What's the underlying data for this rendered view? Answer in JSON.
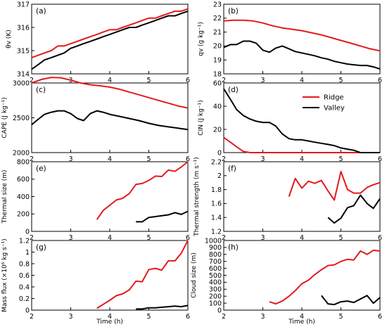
{
  "colors": {
    "ridge": "#e41a1c",
    "valley": "#000000"
  },
  "legend": {
    "placement": "top-right of panel (d)",
    "ridge": "Ridge",
    "valley": "Valley"
  },
  "x_axis": {
    "label": "Time (h)",
    "range": [
      2,
      6
    ],
    "ticks": [
      "2",
      "3",
      "4",
      "5",
      "6"
    ]
  },
  "chart_data": [
    {
      "type": "line",
      "tag": "(a)",
      "ylabel": "θv (K)",
      "ylim": [
        314,
        317
      ],
      "yticks": [
        314,
        315,
        316,
        317
      ],
      "series": [
        {
          "name": "Ridge",
          "x": [
            2,
            2.17,
            2.33,
            2.5,
            2.67,
            2.83,
            3,
            3.17,
            3.33,
            3.5,
            3.67,
            3.83,
            4,
            4.17,
            4.33,
            4.5,
            4.67,
            4.83,
            5,
            5.17,
            5.33,
            5.5,
            5.67,
            5.83,
            6
          ],
          "y": [
            314.7,
            314.8,
            314.9,
            315.0,
            315.2,
            315.2,
            315.3,
            315.4,
            315.5,
            315.6,
            315.7,
            315.8,
            315.9,
            315.9,
            316.0,
            316.1,
            316.2,
            316.3,
            316.4,
            316.4,
            316.5,
            316.6,
            316.7,
            316.7,
            316.8
          ]
        },
        {
          "name": "Valley",
          "x": [
            2,
            2.17,
            2.33,
            2.5,
            2.67,
            2.83,
            3,
            3.17,
            3.33,
            3.5,
            3.67,
            3.83,
            4,
            4.17,
            4.33,
            4.5,
            4.67,
            4.83,
            5,
            5.17,
            5.33,
            5.5,
            5.67,
            5.83,
            6
          ],
          "y": [
            314.2,
            314.4,
            314.6,
            314.7,
            314.8,
            314.9,
            315.1,
            315.2,
            315.3,
            315.4,
            315.5,
            315.6,
            315.7,
            315.8,
            315.9,
            316.0,
            316.0,
            316.1,
            316.2,
            316.3,
            316.4,
            316.5,
            316.5,
            316.6,
            316.7
          ]
        }
      ]
    },
    {
      "type": "line",
      "tag": "(b)",
      "ylabel": "qv (g kg⁻¹)",
      "ylim": [
        18,
        23
      ],
      "yticks": [
        18,
        19,
        20,
        21,
        22,
        23
      ],
      "series": [
        {
          "name": "Ridge",
          "x": [
            2,
            2.25,
            2.5,
            2.75,
            3,
            3.25,
            3.5,
            3.75,
            4,
            4.25,
            4.5,
            4.75,
            5,
            5.25,
            5.5,
            5.75,
            6
          ],
          "y": [
            21.8,
            21.85,
            21.85,
            21.8,
            21.65,
            21.45,
            21.3,
            21.2,
            21.1,
            20.95,
            20.8,
            20.6,
            20.4,
            20.2,
            20.0,
            19.8,
            19.65
          ]
        },
        {
          "name": "Valley",
          "x": [
            2,
            2.17,
            2.33,
            2.5,
            2.67,
            2.83,
            3,
            3.17,
            3.33,
            3.5,
            3.67,
            3.83,
            4,
            4.17,
            4.33,
            4.5,
            4.67,
            4.83,
            5,
            5.17,
            5.33,
            5.5,
            5.67,
            5.83,
            6
          ],
          "y": [
            19.9,
            20.1,
            20.1,
            20.35,
            20.35,
            20.2,
            19.7,
            19.55,
            19.85,
            20.0,
            19.8,
            19.6,
            19.5,
            19.4,
            19.3,
            19.15,
            19.05,
            18.9,
            18.8,
            18.7,
            18.65,
            18.6,
            18.6,
            18.5,
            18.35
          ]
        }
      ]
    },
    {
      "type": "line",
      "tag": "(c)",
      "ylabel": "CAPE (J kg⁻¹)",
      "ylim": [
        2000,
        3000
      ],
      "yticks": [
        2000,
        2500,
        3000
      ],
      "series": [
        {
          "name": "Ridge",
          "x": [
            2,
            2.25,
            2.5,
            2.75,
            3,
            3.25,
            3.5,
            3.75,
            4,
            4.25,
            4.5,
            4.75,
            5,
            5.25,
            5.5,
            5.75,
            6
          ],
          "y": [
            3000,
            3050,
            3080,
            3075,
            3040,
            3000,
            2975,
            2960,
            2940,
            2910,
            2870,
            2830,
            2790,
            2750,
            2710,
            2670,
            2640
          ]
        },
        {
          "name": "Valley",
          "x": [
            2,
            2.17,
            2.33,
            2.5,
            2.67,
            2.83,
            3,
            3.17,
            3.33,
            3.5,
            3.67,
            3.83,
            4,
            4.25,
            4.5,
            4.75,
            5,
            5.25,
            5.5,
            5.75,
            6
          ],
          "y": [
            2400,
            2480,
            2550,
            2580,
            2600,
            2600,
            2560,
            2490,
            2460,
            2560,
            2600,
            2580,
            2550,
            2520,
            2490,
            2460,
            2420,
            2390,
            2370,
            2350,
            2330
          ]
        }
      ]
    },
    {
      "type": "line",
      "tag": "(d)",
      "ylabel": "CIN (J kg⁻¹)",
      "ylim": [
        0,
        60
      ],
      "yticks": [
        0,
        20,
        40,
        60
      ],
      "series": [
        {
          "name": "Ridge",
          "x": [
            2,
            2.17,
            2.33,
            2.5,
            2.67,
            2.83,
            3,
            3.5,
            4,
            4.5,
            5,
            5.5,
            6
          ],
          "y": [
            13,
            9,
            5,
            1,
            0,
            0,
            0,
            0,
            0,
            0,
            0,
            0,
            0
          ]
        },
        {
          "name": "Valley",
          "x": [
            2,
            2.17,
            2.33,
            2.5,
            2.67,
            2.83,
            3,
            3.17,
            3.33,
            3.5,
            3.67,
            3.83,
            4,
            4.17,
            4.33,
            4.5,
            4.67,
            4.83,
            5,
            5.17,
            5.33,
            5.5,
            5.67,
            5.83,
            6
          ],
          "y": [
            55,
            46,
            37,
            32,
            29,
            27,
            26,
            26,
            23,
            16,
            12,
            11,
            11,
            10,
            9,
            8,
            7,
            6,
            4,
            3,
            2,
            0,
            0,
            0,
            0
          ]
        }
      ]
    },
    {
      "type": "line",
      "tag": "(e)",
      "ylabel": "Thermal size (m)",
      "ylim": [
        0,
        800
      ],
      "yticks": [
        0,
        200,
        400,
        600,
        800
      ],
      "series": [
        {
          "name": "Ridge",
          "x": [
            3.67,
            3.83,
            4,
            4.17,
            4.33,
            4.5,
            4.67,
            4.83,
            5,
            5.17,
            5.33,
            5.5,
            5.67,
            5.83,
            6
          ],
          "y": [
            135,
            240,
            300,
            360,
            380,
            435,
            540,
            550,
            585,
            635,
            630,
            705,
            690,
            740,
            800
          ]
        },
        {
          "name": "Valley",
          "x": [
            4.67,
            4.83,
            5,
            5.17,
            5.33,
            5.5,
            5.67,
            5.83,
            6
          ],
          "y": [
            110,
            110,
            160,
            170,
            180,
            190,
            215,
            195,
            230
          ]
        }
      ]
    },
    {
      "type": "line",
      "tag": "(f)",
      "ylabel": "Thermal strength (m s⁻¹)",
      "ylim": [
        1.2,
        2.2
      ],
      "yticks": [
        1.2,
        1.4,
        1.6,
        1.8,
        2.0,
        2.2
      ],
      "series": [
        {
          "name": "Ridge",
          "x": [
            3.67,
            3.83,
            4,
            4.17,
            4.33,
            4.5,
            4.67,
            4.83,
            5,
            5.17,
            5.33,
            5.5,
            5.67,
            5.83,
            6
          ],
          "y": [
            1.7,
            1.96,
            1.82,
            1.92,
            1.89,
            1.93,
            1.78,
            1.65,
            2.06,
            1.8,
            1.75,
            1.75,
            1.83,
            1.87,
            1.9
          ]
        },
        {
          "name": "Valley",
          "x": [
            4.67,
            4.83,
            5,
            5.17,
            5.33,
            5.5,
            5.67,
            5.83,
            6
          ],
          "y": [
            1.4,
            1.32,
            1.39,
            1.54,
            1.57,
            1.72,
            1.6,
            1.53,
            1.67
          ]
        }
      ]
    },
    {
      "type": "line",
      "tag": "(g)",
      "ylabel": "Mass flux (×10⁶ kg s⁻¹)",
      "ylim": [
        0,
        1.2
      ],
      "yticks": [
        0,
        0.2,
        0.4,
        0.6,
        0.8,
        1.0,
        1.2
      ],
      "series": [
        {
          "name": "Ridge",
          "x": [
            3.67,
            3.83,
            4,
            4.17,
            4.33,
            4.5,
            4.67,
            4.83,
            5,
            5.17,
            5.33,
            5.5,
            5.67,
            5.83,
            6
          ],
          "y": [
            0.03,
            0.1,
            0.17,
            0.25,
            0.28,
            0.35,
            0.5,
            0.49,
            0.7,
            0.72,
            0.69,
            0.85,
            0.85,
            0.98,
            1.2
          ]
        },
        {
          "name": "Valley",
          "x": [
            4.67,
            4.83,
            5,
            5.17,
            5.33,
            5.5,
            5.67,
            5.83,
            6
          ],
          "y": [
            0.02,
            0.02,
            0.04,
            0.04,
            0.05,
            0.06,
            0.07,
            0.06,
            0.08
          ]
        }
      ]
    },
    {
      "type": "line",
      "tag": "(h)",
      "ylabel": "Cloud size (m)",
      "ylim": [
        0,
        1000
      ],
      "yticks": [
        0,
        100,
        200,
        300,
        400,
        500,
        600,
        700,
        800,
        900,
        1000
      ],
      "series": [
        {
          "name": "Ridge",
          "x": [
            3.17,
            3.33,
            3.5,
            3.67,
            3.83,
            4,
            4.17,
            4.33,
            4.5,
            4.67,
            4.83,
            5,
            5.17,
            5.33,
            5.5,
            5.67,
            5.83,
            6
          ],
          "y": [
            120,
            90,
            130,
            200,
            280,
            380,
            430,
            510,
            580,
            640,
            650,
            700,
            730,
            720,
            850,
            800,
            860,
            850
          ]
        },
        {
          "name": "Valley",
          "x": [
            4.5,
            4.67,
            4.83,
            5,
            5.17,
            5.33,
            5.5,
            5.67,
            5.83,
            6
          ],
          "y": [
            210,
            90,
            80,
            120,
            130,
            110,
            160,
            210,
            100,
            180
          ]
        }
      ]
    }
  ]
}
